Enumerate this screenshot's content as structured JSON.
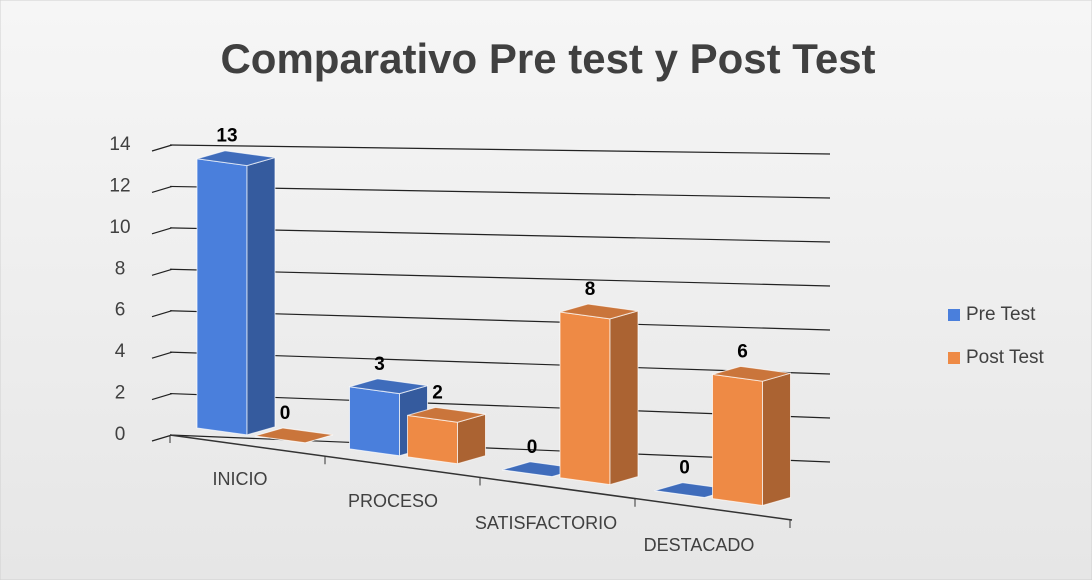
{
  "chart_data": {
    "type": "bar3d",
    "title": "Comparativo Pre test y Post Test",
    "categories": [
      "INICIO",
      "PROCESO",
      "SATISFACTORIO",
      "DESTACADO"
    ],
    "series": [
      {
        "name": "Pre Test",
        "color": "#4a7fdc",
        "values": [
          13,
          3,
          0,
          0
        ]
      },
      {
        "name": "Post Test",
        "color": "#ee8a45",
        "values": [
          0,
          2,
          8,
          6
        ]
      }
    ],
    "ylim": [
      0,
      14
    ],
    "yticks": [
      0,
      2,
      4,
      6,
      8,
      10,
      12,
      14
    ],
    "grid": true,
    "legend": "right"
  }
}
